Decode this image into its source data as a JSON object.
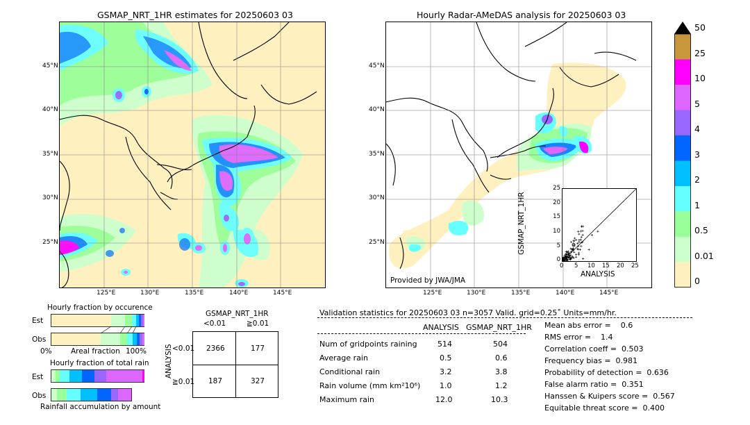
{
  "left_map": {
    "title": "GSMAP_NRT_1HR estimates for 20250603 03",
    "lat_labels": [
      "45°N",
      "40°N",
      "35°N",
      "30°N",
      "25°N"
    ],
    "lon_labels": [
      "125°E",
      "130°E",
      "135°E",
      "140°E",
      "145°E"
    ]
  },
  "right_map": {
    "title": "Hourly Radar-AMeDAS analysis for 20250603 03",
    "lat_labels": [
      "45°N",
      "40°N",
      "35°N",
      "30°N",
      "25°N"
    ],
    "lon_labels": [
      "125°E",
      "130°E",
      "135°E",
      "140°E",
      "145°E"
    ],
    "credit": "Provided by JWA/JMA"
  },
  "colorbar": {
    "labels": [
      "50",
      "25",
      "10",
      "5",
      "4",
      "3",
      "2",
      "1",
      "0.5",
      "0.01",
      "0"
    ],
    "colors": [
      "#c8963c",
      "#ff00ff",
      "#dd66ff",
      "#9966ff",
      "#0066ff",
      "#00c0ff",
      "#66ffff",
      "#99ff99",
      "#ccffcc",
      "#fff0c0"
    ]
  },
  "inset": {
    "ylabel": "GSMAP_NRT_1HR",
    "xlabel": "ANALYSIS",
    "ticks": [
      "0",
      "5",
      "10",
      "15",
      "20",
      "25"
    ]
  },
  "fraction_occurrence": {
    "title": "Hourly fraction by occurence",
    "rows": [
      "Est",
      "Obs"
    ],
    "axis_left": "0%",
    "axis_mid": "Areal fraction",
    "axis_right": "100%"
  },
  "fraction_total": {
    "title": "Hourly fraction of total rain",
    "rows": [
      "Est",
      "Obs"
    ],
    "footer": "Rainfall accumulation by amount"
  },
  "contingency": {
    "title": "GSMAP_NRT_1HR",
    "col_labels": [
      "<0.01",
      "≧0.01"
    ],
    "row_axis": "ANALYSIS",
    "row_labels": [
      "<0.01",
      "≧0.01"
    ],
    "cells": [
      "2366",
      "177",
      "187",
      "327"
    ]
  },
  "validation": {
    "header": "Validation statistics for 20250603 03  n=3057 Valid. grid=0.25˚ Units=mm/hr.",
    "col_analysis": "ANALYSIS",
    "col_gsmap": "GSMAP_NRT_1HR",
    "rows": [
      {
        "label": "Num of gridpoints raining",
        "a": "514",
        "g": "504"
      },
      {
        "label": "Average rain",
        "a": "0.5",
        "g": "0.6"
      },
      {
        "label": "Conditional rain",
        "a": "3.2",
        "g": "3.8"
      },
      {
        "label": "Rain volume (mm km²10⁶)",
        "a": "1.0",
        "g": "1.2"
      },
      {
        "label": "Maximum rain",
        "a": "12.0",
        "g": "10.3"
      }
    ],
    "scores": [
      "Mean abs error =    0.6",
      "RMS error =    1.4",
      "Correlation coeff =  0.503",
      "Frequency bias =  0.981",
      "Probability of detection =  0.636",
      "False alarm ratio =  0.351",
      "Hanssen & Kuipers score =  0.567",
      "Equitable threat score =  0.400"
    ]
  },
  "chart_data": [
    {
      "type": "heatmap",
      "title": "GSMAP_NRT_1HR estimates for 20250603 03",
      "units": "mm/hr",
      "x_range": [
        120,
        150
      ],
      "y_range": [
        20,
        50
      ]
    },
    {
      "type": "heatmap",
      "title": "Hourly Radar-AMeDAS analysis for 20250603 03",
      "units": "mm/hr",
      "x_range": [
        120,
        150
      ],
      "y_range": [
        20,
        50
      ]
    },
    {
      "type": "scatter",
      "xlabel": "ANALYSIS",
      "ylabel": "GSMAP_NRT_1HR",
      "xlim": [
        0,
        25
      ],
      "ylim": [
        0,
        25
      ]
    },
    {
      "type": "table",
      "title": "GSMAP_NRT_1HR",
      "categories": [
        "<0.01",
        "≧0.01"
      ],
      "values": [
        [
          2366,
          177
        ],
        [
          187,
          327
        ]
      ]
    }
  ]
}
